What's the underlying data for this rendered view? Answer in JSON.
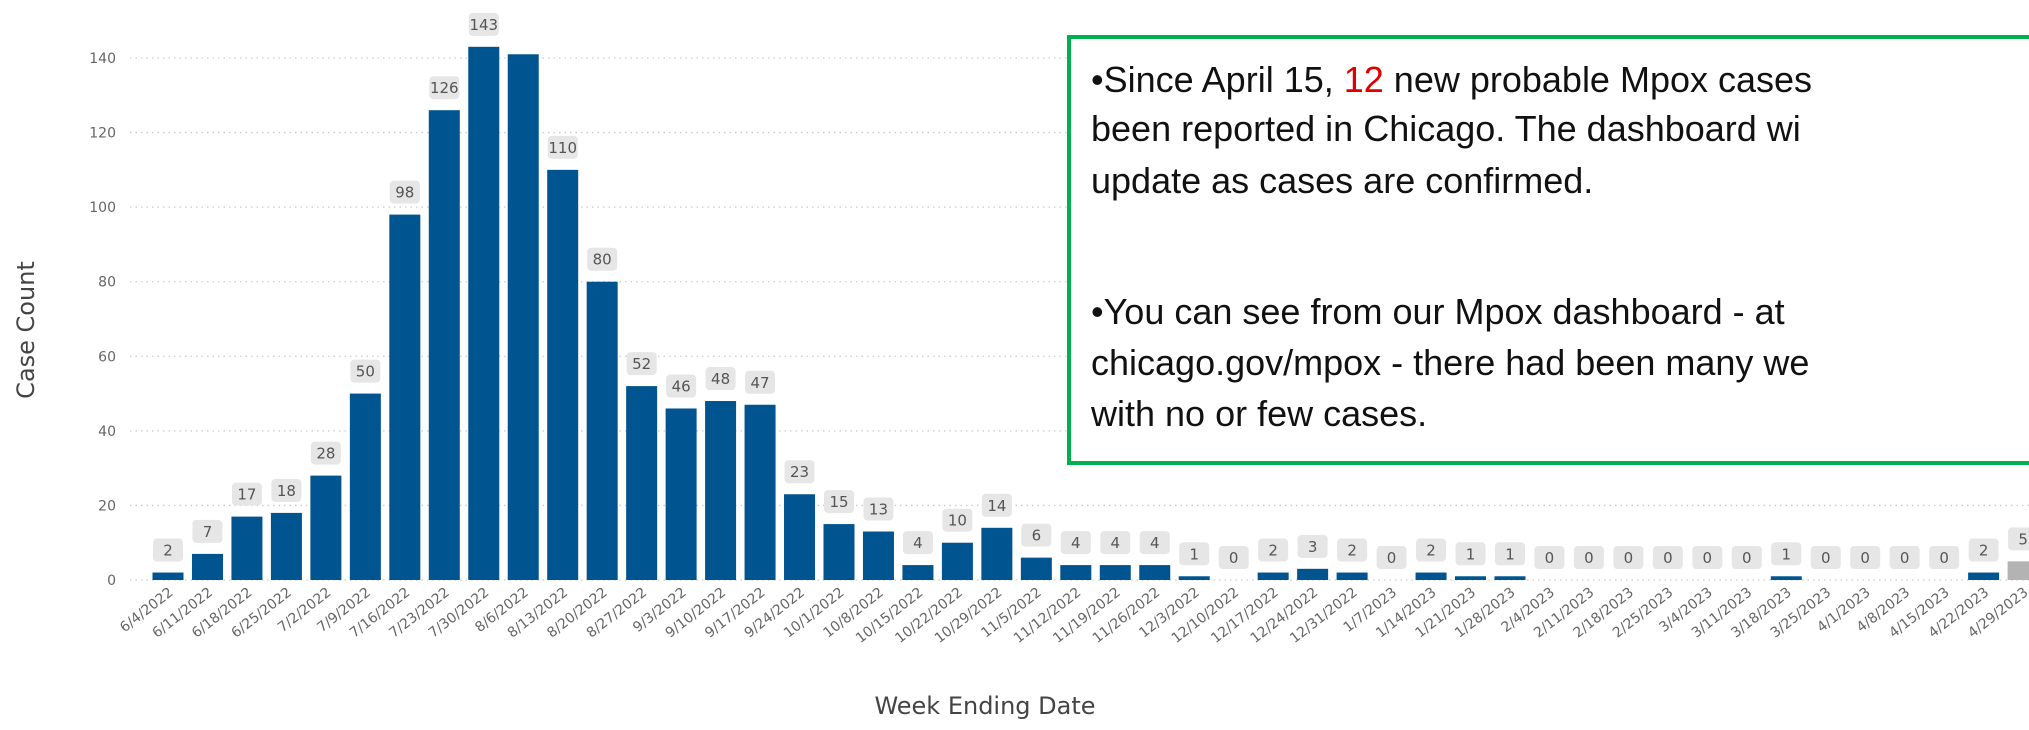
{
  "chart_data": {
    "type": "bar",
    "x_label": "Week Ending Date",
    "y_label": "Case Count",
    "categories": [
      "6/4/2022",
      "6/11/2022",
      "6/18/2022",
      "6/25/2022",
      "7/2/2022",
      "7/9/2022",
      "7/16/2022",
      "7/23/2022",
      "7/30/2022",
      "8/6/2022",
      "8/13/2022",
      "8/20/2022",
      "8/27/2022",
      "9/3/2022",
      "9/10/2022",
      "9/17/2022",
      "9/24/2022",
      "10/1/2022",
      "10/8/2022",
      "10/15/2022",
      "10/22/2022",
      "10/29/2022",
      "11/5/2022",
      "11/12/2022",
      "11/19/2022",
      "11/26/2022",
      "12/3/2022",
      "12/10/2022",
      "12/17/2022",
      "12/24/2022",
      "12/31/2022",
      "1/7/2023",
      "1/14/2023",
      "1/21/2023",
      "1/28/2023",
      "2/4/2023",
      "2/11/2023",
      "2/18/2023",
      "2/25/2023",
      "3/4/2023",
      "3/11/2023",
      "3/18/2023",
      "3/25/2023",
      "4/1/2023",
      "4/8/2023",
      "4/15/2023",
      "4/22/2023",
      "4/29/2023"
    ],
    "values": [
      2,
      7,
      17,
      18,
      28,
      50,
      98,
      126,
      143,
      141,
      110,
      80,
      52,
      46,
      48,
      47,
      23,
      15,
      13,
      4,
      10,
      14,
      6,
      4,
      4,
      4,
      1,
      0,
      2,
      3,
      2,
      0,
      2,
      1,
      1,
      0,
      0,
      0,
      0,
      0,
      0,
      1,
      0,
      0,
      0,
      0,
      2,
      5
    ],
    "value_labels": [
      2,
      7,
      17,
      18,
      28,
      50,
      98,
      126,
      143,
      null,
      110,
      80,
      52,
      46,
      48,
      47,
      23,
      15,
      13,
      4,
      10,
      14,
      6,
      4,
      4,
      4,
      1,
      0,
      2,
      3,
      2,
      0,
      2,
      1,
      1,
      0,
      0,
      0,
      0,
      0,
      0,
      1,
      0,
      0,
      0,
      0,
      2,
      5
    ],
    "colors": [
      "#00548f",
      "#00548f",
      "#00548f",
      "#00548f",
      "#00548f",
      "#00548f",
      "#00548f",
      "#00548f",
      "#00548f",
      "#00548f",
      "#00548f",
      "#00548f",
      "#00548f",
      "#00548f",
      "#00548f",
      "#00548f",
      "#00548f",
      "#00548f",
      "#00548f",
      "#00548f",
      "#00548f",
      "#00548f",
      "#00548f",
      "#00548f",
      "#00548f",
      "#00548f",
      "#00548f",
      "#00548f",
      "#00548f",
      "#00548f",
      "#00548f",
      "#00548f",
      "#00548f",
      "#00548f",
      "#00548f",
      "#00548f",
      "#00548f",
      "#00548f",
      "#00548f",
      "#00548f",
      "#00548f",
      "#00548f",
      "#00548f",
      "#00548f",
      "#00548f",
      "#00548f",
      "#00548f",
      "#b3b3b3"
    ],
    "ylim": [
      0,
      140
    ],
    "yticks": [
      0,
      20,
      40,
      60,
      80,
      100,
      120,
      140
    ],
    "grid": true,
    "annotation": {
      "lines": [
        [
          "•Since April 15, ",
          "12",
          " new probable Mpox cases"
        ],
        [
          "been reported in Chicago. The dashboard wi"
        ],
        [
          "update as cases are confirmed."
        ],
        [
          "•You can see from our Mpox dashboard - at"
        ],
        [
          "chicago.gov/mpox - there had been many we"
        ],
        [
          "with no or few cases."
        ]
      ],
      "highlight_color": "#e00000",
      "border_color": "#00b050"
    }
  }
}
